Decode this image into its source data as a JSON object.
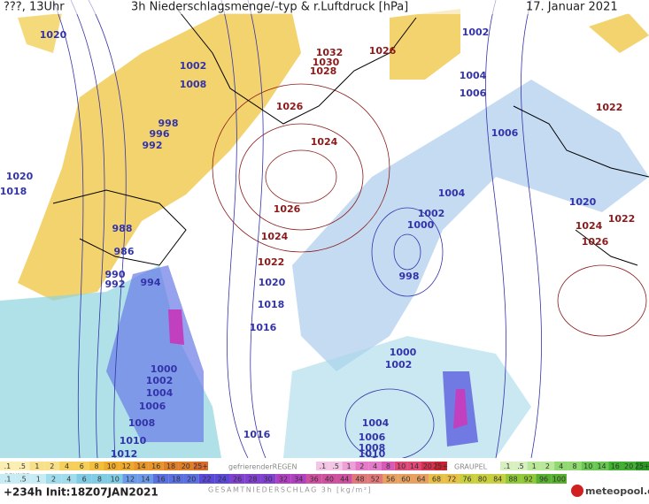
{
  "header": {
    "left": "???, 13Uhr",
    "title": "3h Niederschlagsmenge/-typ & r.Luftdruck [hPa]",
    "date": "17. Januar 2021"
  },
  "isobar_labels": [
    {
      "text": "1020",
      "color": "#3333aa"
    },
    {
      "text": "1002",
      "color": "#3333aa"
    },
    {
      "text": "1008",
      "color": "#3333aa"
    },
    {
      "text": "998",
      "color": "#3333aa"
    },
    {
      "text": "996",
      "color": "#3333aa"
    },
    {
      "text": "992",
      "color": "#3333aa"
    },
    {
      "text": "1020",
      "color": "#3333aa"
    },
    {
      "text": "1018",
      "color": "#3333aa"
    },
    {
      "text": "988",
      "color": "#3333aa"
    },
    {
      "text": "986",
      "color": "#3333aa"
    },
    {
      "text": "990",
      "color": "#3333aa"
    },
    {
      "text": "992",
      "color": "#3333aa"
    },
    {
      "text": "994",
      "color": "#3333aa"
    },
    {
      "text": "1032",
      "color": "#8b1a1a"
    },
    {
      "text": "1030",
      "color": "#8b1a1a"
    },
    {
      "text": "1028",
      "color": "#8b1a1a"
    },
    {
      "text": "1026",
      "color": "#8b1a1a"
    },
    {
      "text": "1026",
      "color": "#8b1a1a"
    },
    {
      "text": "1024",
      "color": "#8b1a1a"
    },
    {
      "text": "1026",
      "color": "#8b1a1a"
    },
    {
      "text": "1024",
      "color": "#8b1a1a"
    },
    {
      "text": "1022",
      "color": "#8b1a1a"
    },
    {
      "text": "1020",
      "color": "#3333aa"
    },
    {
      "text": "1018",
      "color": "#3333aa"
    },
    {
      "text": "1016",
      "color": "#3333aa"
    },
    {
      "text": "1002",
      "color": "#3333aa"
    },
    {
      "text": "1004",
      "color": "#3333aa"
    },
    {
      "text": "1006",
      "color": "#3333aa"
    },
    {
      "text": "1006",
      "color": "#3333aa"
    },
    {
      "text": "1022",
      "color": "#8b1a1a"
    },
    {
      "text": "1004",
      "color": "#3333aa"
    },
    {
      "text": "1002",
      "color": "#3333aa"
    },
    {
      "text": "1000",
      "color": "#3333aa"
    },
    {
      "text": "998",
      "color": "#3333aa"
    },
    {
      "text": "1020",
      "color": "#3333aa"
    },
    {
      "text": "1022",
      "color": "#8b1a1a"
    },
    {
      "text": "1024",
      "color": "#8b1a1a"
    },
    {
      "text": "1026",
      "color": "#8b1a1a"
    },
    {
      "text": "1000",
      "color": "#3333aa"
    },
    {
      "text": "1002",
      "color": "#3333aa"
    },
    {
      "text": "1000",
      "color": "#3333aa"
    },
    {
      "text": "1002",
      "color": "#3333aa"
    },
    {
      "text": "1004",
      "color": "#3333aa"
    },
    {
      "text": "1006",
      "color": "#3333aa"
    },
    {
      "text": "1008",
      "color": "#3333aa"
    },
    {
      "text": "1010",
      "color": "#3333aa"
    },
    {
      "text": "1012",
      "color": "#3333aa"
    },
    {
      "text": "1016",
      "color": "#3333aa"
    },
    {
      "text": "1004",
      "color": "#3333aa"
    },
    {
      "text": "1006",
      "color": "#3333aa"
    },
    {
      "text": "1008",
      "color": "#3333aa"
    },
    {
      "text": "1010",
      "color": "#3333aa"
    }
  ],
  "legend": {
    "snow_label": "SCHNEE",
    "snow_scale": [
      ".1",
      ".5",
      "1",
      "2",
      "4",
      "6",
      "8",
      "10",
      "12",
      "14",
      "16",
      "18",
      "20",
      "25+"
    ],
    "rain_label": "gefrierenderREGEN",
    "rain_scale": [
      ".1",
      ".5",
      "1",
      "2",
      "4",
      "8",
      "10",
      "14",
      "20",
      "25+"
    ],
    "graupel_label": "GRAUPEL",
    "graupel_scale": [
      ".1",
      ".5",
      "1",
      "2",
      "4",
      "8",
      "10",
      "14",
      "16",
      "20",
      "25+"
    ],
    "total_scale": [
      ".1",
      ".5",
      "1",
      "2",
      "4",
      "6",
      "8",
      "10",
      "12",
      "14",
      "16",
      "18",
      "20",
      "22",
      "24",
      "26",
      "28",
      "30",
      "32",
      "34",
      "36",
      "40",
      "44",
      "48",
      "52",
      "56",
      "60",
      "64",
      "68",
      "72",
      "76",
      "80",
      "84",
      "88",
      "92",
      "96",
      "100"
    ],
    "total_label": "GESAMTNIEDERSCHLAG 3h [kg/m²]"
  },
  "footer": {
    "run": "+234h Init:18Z07JAN2021",
    "logo": "meteopool.org"
  }
}
